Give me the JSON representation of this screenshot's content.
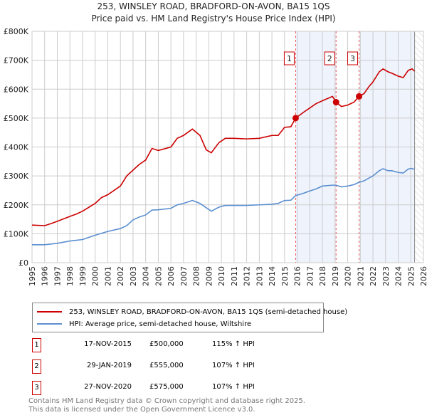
{
  "chart_data": {
    "type": "line",
    "title": "253, WINSLEY ROAD, BRADFORD-ON-AVON, BA15 1QS",
    "subtitle": "Price paid vs. HM Land Registry's House Price Index (HPI)",
    "xlim": [
      1995,
      2026
    ],
    "ylim": [
      0,
      800000
    ],
    "x_ticks": [
      "1995",
      "1996",
      "1997",
      "1998",
      "1999",
      "2000",
      "2001",
      "2002",
      "2003",
      "2004",
      "2005",
      "2006",
      "2007",
      "2008",
      "2009",
      "2010",
      "2011",
      "2012",
      "2013",
      "2014",
      "2015",
      "2016",
      "2017",
      "2018",
      "2019",
      "2020",
      "2021",
      "2022",
      "2023",
      "2024",
      "2025",
      "2026"
    ],
    "y_ticks": [
      {
        "v": 0,
        "label": "£0"
      },
      {
        "v": 100000,
        "label": "£100K"
      },
      {
        "v": 200000,
        "label": "£200K"
      },
      {
        "v": 300000,
        "label": "£300K"
      },
      {
        "v": 400000,
        "label": "£400K"
      },
      {
        "v": 500000,
        "label": "£500K"
      },
      {
        "v": 600000,
        "label": "£600K"
      },
      {
        "v": 700000,
        "label": "£700K"
      },
      {
        "v": 800000,
        "label": "£800K"
      }
    ],
    "series": [
      {
        "name": "253, WINSLEY ROAD, BRADFORD-ON-AVON, BA15 1QS (semi-detached house)",
        "color": "#cc0000",
        "x": [
          1995,
          1996,
          1996.5,
          1997,
          1998,
          1998.5,
          1999,
          2000,
          2000.5,
          2001,
          2002,
          2002.5,
          2003,
          2003.5,
          2004,
          2004.5,
          2005,
          2006,
          2006.5,
          2007,
          2007.7,
          2008.3,
          2008.8,
          2009.2,
          2009.8,
          2010.3,
          2011,
          2012,
          2013,
          2014,
          2014.5,
          2015,
          2015.5,
          2015.88,
          2016.5,
          2017,
          2017.5,
          2018,
          2018.8,
          2019.08,
          2019.5,
          2020,
          2020.5,
          2020.9,
          2021.3,
          2021.7,
          2022,
          2022.5,
          2022.8,
          2023.2,
          2023.5,
          2024,
          2024.4,
          2024.8,
          2025.1,
          2025.3
        ],
        "y": [
          130000,
          128000,
          135000,
          143000,
          160000,
          168000,
          178000,
          205000,
          225000,
          235000,
          265000,
          300000,
          320000,
          340000,
          355000,
          395000,
          388000,
          400000,
          430000,
          440000,
          462000,
          440000,
          390000,
          380000,
          415000,
          430000,
          430000,
          428000,
          430000,
          440000,
          440000,
          468000,
          470000,
          500000,
          520000,
          535000,
          550000,
          560000,
          575000,
          555000,
          540000,
          545000,
          555000,
          575000,
          585000,
          610000,
          625000,
          660000,
          670000,
          660000,
          655000,
          645000,
          640000,
          665000,
          670000,
          662000
        ]
      },
      {
        "name": "HPI: Average price, semi-detached house, Wiltshire",
        "color": "#5b8fd0",
        "x": [
          1995,
          1996,
          1997,
          1998,
          1999,
          2000,
          2001,
          2002,
          2002.5,
          2003,
          2003.5,
          2004,
          2004.5,
          2005,
          2006,
          2006.5,
          2007,
          2007.7,
          2008.3,
          2008.8,
          2009.2,
          2009.8,
          2010.3,
          2011,
          2012,
          2013,
          2014,
          2014.5,
          2015,
          2015.5,
          2015.88,
          2016.5,
          2017,
          2017.5,
          2018,
          2018.8,
          2019.08,
          2019.5,
          2020,
          2020.5,
          2020.9,
          2021.3,
          2021.7,
          2022,
          2022.5,
          2022.8,
          2023.2,
          2023.5,
          2024,
          2024.4,
          2024.8,
          2025.1,
          2025.3
        ],
        "y": [
          62000,
          62000,
          67000,
          75000,
          80000,
          95000,
          108000,
          118000,
          128000,
          148000,
          158000,
          165000,
          182000,
          183000,
          188000,
          200000,
          205000,
          215000,
          205000,
          190000,
          178000,
          192000,
          198000,
          198000,
          198000,
          200000,
          202000,
          205000,
          215000,
          216000,
          232000,
          240000,
          248000,
          255000,
          265000,
          268000,
          268000,
          262000,
          265000,
          270000,
          278000,
          283000,
          293000,
          300000,
          318000,
          325000,
          318000,
          318000,
          312000,
          310000,
          324000,
          326000,
          322000
        ]
      }
    ],
    "sales": [
      {
        "n": "1",
        "x": 2015.88,
        "date": "17-NOV-2015",
        "price": 500000,
        "price_label": "£500,000",
        "hpi": "115% ↑ HPI"
      },
      {
        "n": "2",
        "x": 2019.08,
        "date": "29-JAN-2019",
        "price": 555000,
        "price_label": "£555,000",
        "hpi": "107% ↑ HPI"
      },
      {
        "n": "3",
        "x": 2020.9,
        "date": "27-NOV-2020",
        "price": 575000,
        "price_label": "£575,000",
        "hpi": "107% ↑ HPI"
      }
    ],
    "data_end": 2025.3,
    "legend_position": "below"
  },
  "footer": {
    "line1": "Contains HM Land Registry data © Crown copyright and database right 2025.",
    "line2": "This data is licensed under the Open Government Licence v3.0."
  }
}
